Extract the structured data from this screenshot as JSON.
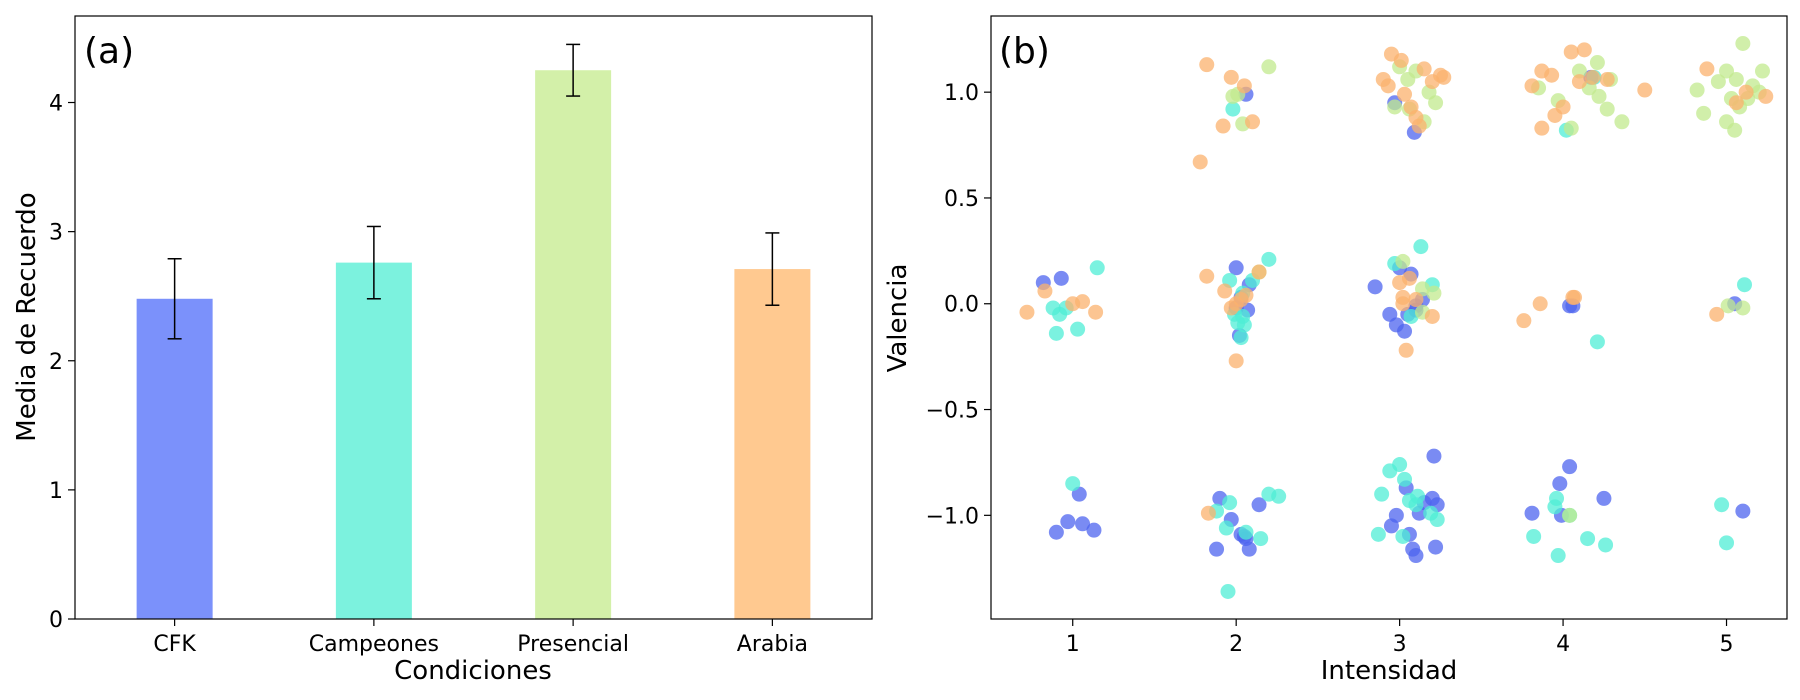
{
  "chart_data": [
    {
      "type": "bar",
      "panel_label": "(a)",
      "title": "",
      "xlabel": "Condiciones",
      "ylabel": "Media de Recuerdo",
      "categories": [
        "CFK",
        "Campeones",
        "Presencial",
        "Arabia"
      ],
      "values": [
        2.48,
        2.76,
        4.25,
        2.71
      ],
      "errors": [
        0.31,
        0.28,
        0.2,
        0.28
      ],
      "colors": [
        "#7b91fb",
        "#7cf2de",
        "#d3f0a9",
        "#ffc990"
      ],
      "ylim": [
        0,
        4.67
      ],
      "yticks": [
        "0",
        "1",
        "2",
        "3",
        "4"
      ],
      "grid": false,
      "legend": "none"
    },
    {
      "type": "scatter",
      "panel_label": "(b)",
      "title": "",
      "xlabel": "Intensidad",
      "ylabel": "Valencia",
      "xlim": [
        0.5,
        5.37
      ],
      "ylim": [
        -1.49,
        1.36
      ],
      "xticks": [
        "1",
        "2",
        "3",
        "4",
        "5"
      ],
      "yticks": [
        "−1.0",
        "−0.5",
        "0.0",
        "0.5",
        "1.0"
      ],
      "grid": false,
      "legend": "none",
      "series": [
        {
          "color": "#4e64ef",
          "points": [
            [
              0.82,
              0.1
            ],
            [
              0.93,
              0.12
            ],
            [
              0.9,
              -1.08
            ],
            [
              0.97,
              -1.03
            ],
            [
              1.04,
              -0.9
            ],
            [
              1.06,
              -1.04
            ],
            [
              1.13,
              -1.07
            ],
            [
              1.9,
              -0.92
            ],
            [
              1.97,
              -1.02
            ],
            [
              2.0,
              0.17
            ],
            [
              2.05,
              -1.1
            ],
            [
              2.07,
              -0.03
            ],
            [
              2.02,
              -0.15
            ],
            [
              2.08,
              0.09
            ],
            [
              2.06,
              0.99
            ],
            [
              1.88,
              -1.16
            ],
            [
              2.03,
              -1.09
            ],
            [
              2.06,
              -1.11
            ],
            [
              2.08,
              -1.16
            ],
            [
              2.14,
              -0.95
            ],
            [
              2.03,
              0.03
            ],
            [
              2.0,
              -0.02
            ],
            [
              2.85,
              0.08
            ],
            [
              2.94,
              -0.05
            ],
            [
              2.98,
              -0.1
            ],
            [
              3.03,
              -0.13
            ],
            [
              3.05,
              -0.05
            ],
            [
              3.0,
              0.17
            ],
            [
              3.07,
              0.14
            ],
            [
              3.1,
              -0.01
            ],
            [
              3.14,
              0.02
            ],
            [
              3.1,
              -0.03
            ],
            [
              2.97,
              0.95
            ],
            [
              3.09,
              0.81
            ],
            [
              2.95,
              -1.05
            ],
            [
              2.98,
              -1.0
            ],
            [
              3.04,
              -0.87
            ],
            [
              3.06,
              -1.09
            ],
            [
              3.08,
              -1.16
            ],
            [
              3.1,
              -1.19
            ],
            [
              3.15,
              -0.94
            ],
            [
              3.2,
              -0.92
            ],
            [
              3.23,
              -0.95
            ],
            [
              3.21,
              -0.72
            ],
            [
              3.22,
              -1.15
            ],
            [
              3.12,
              -0.99
            ],
            [
              3.81,
              -0.99
            ],
            [
              3.98,
              -0.85
            ],
            [
              4.04,
              -0.77
            ],
            [
              3.99,
              -1.0
            ],
            [
              4.06,
              -0.01
            ],
            [
              4.04,
              -0.01
            ],
            [
              4.25,
              -0.92
            ],
            [
              4.17,
              1.07
            ],
            [
              5.05,
              0.0
            ],
            [
              5.1,
              -0.98
            ]
          ]
        },
        {
          "color": "#4feed5",
          "points": [
            [
              1.15,
              0.17
            ],
            [
              0.88,
              -0.02
            ],
            [
              0.92,
              -0.05
            ],
            [
              0.9,
              -0.14
            ],
            [
              0.96,
              -0.02
            ],
            [
              1.03,
              -0.12
            ],
            [
              1.0,
              -0.85
            ],
            [
              1.98,
              0.92
            ],
            [
              2.1,
              0.11
            ],
            [
              2.04,
              0.05
            ],
            [
              1.96,
              0.11
            ],
            [
              2.2,
              0.21
            ],
            [
              1.99,
              -0.05
            ],
            [
              2.01,
              -0.09
            ],
            [
              2.04,
              -0.06
            ],
            [
              2.05,
              -0.1
            ],
            [
              2.03,
              -0.16
            ],
            [
              1.88,
              -0.98
            ],
            [
              1.94,
              -1.06
            ],
            [
              1.96,
              -0.94
            ],
            [
              2.06,
              -1.08
            ],
            [
              2.2,
              -0.9
            ],
            [
              2.26,
              -0.91
            ],
            [
              2.15,
              -1.11
            ],
            [
              1.95,
              -1.36
            ],
            [
              2.87,
              -1.09
            ],
            [
              2.89,
              -0.9
            ],
            [
              2.94,
              -0.79
            ],
            [
              3.0,
              -0.76
            ],
            [
              3.03,
              -0.83
            ],
            [
              3.06,
              -0.93
            ],
            [
              3.02,
              -1.1
            ],
            [
              3.13,
              0.27
            ],
            [
              3.2,
              0.09
            ],
            [
              2.97,
              0.19
            ],
            [
              3.07,
              -0.06
            ],
            [
              3.11,
              -0.91
            ],
            [
              3.23,
              -1.02
            ],
            [
              3.19,
              -0.99
            ],
            [
              3.1,
              -0.95
            ],
            [
              4.19,
              1.07
            ],
            [
              4.21,
              -0.18
            ],
            [
              3.82,
              -1.1
            ],
            [
              3.95,
              -0.96
            ],
            [
              3.97,
              -1.19
            ],
            [
              4.04,
              -1.0
            ],
            [
              4.15,
              -1.11
            ],
            [
              4.26,
              -1.14
            ],
            [
              3.96,
              -0.92
            ],
            [
              4.02,
              0.82
            ],
            [
              5.11,
              0.09
            ],
            [
              4.97,
              -0.95
            ],
            [
              5.0,
              -1.13
            ]
          ]
        },
        {
          "color": "#c1ea8d",
          "points": [
            [
              1.98,
              0.98
            ],
            [
              2.01,
              0.99
            ],
            [
              2.04,
              0.85
            ],
            [
              2.2,
              1.12
            ],
            [
              2.14,
              0.15
            ],
            [
              3.0,
              1.12
            ],
            [
              3.05,
              1.06
            ],
            [
              3.1,
              1.1
            ],
            [
              3.18,
              1.0
            ],
            [
              3.22,
              0.95
            ],
            [
              3.15,
              0.86
            ],
            [
              3.06,
              0.92
            ],
            [
              2.97,
              0.93
            ],
            [
              3.02,
              0.2
            ],
            [
              3.14,
              0.07
            ],
            [
              3.21,
              0.05
            ],
            [
              3.14,
              -0.04
            ],
            [
              3.85,
              1.02
            ],
            [
              3.97,
              0.96
            ],
            [
              4.05,
              0.83
            ],
            [
              4.1,
              1.1
            ],
            [
              4.16,
              1.02
            ],
            [
              4.21,
              1.14
            ],
            [
              4.22,
              0.98
            ],
            [
              4.27,
              0.92
            ],
            [
              4.29,
              1.06
            ],
            [
              4.36,
              0.86
            ],
            [
              4.04,
              -1.0
            ],
            [
              4.82,
              1.01
            ],
            [
              4.86,
              0.9
            ],
            [
              4.95,
              1.05
            ],
            [
              5.0,
              1.1
            ],
            [
              5.03,
              0.97
            ],
            [
              5.06,
              1.06
            ],
            [
              5.1,
              1.23
            ],
            [
              5.08,
              0.93
            ],
            [
              5.0,
              0.86
            ],
            [
              5.05,
              0.82
            ],
            [
              5.13,
              0.97
            ],
            [
              5.16,
              1.03
            ],
            [
              5.2,
              1.0
            ],
            [
              5.22,
              1.1
            ],
            [
              5.01,
              -0.01
            ],
            [
              5.1,
              -0.02
            ]
          ]
        },
        {
          "color": "#fbb26e",
          "points": [
            [
              0.72,
              -0.04
            ],
            [
              0.83,
              0.06
            ],
            [
              1.0,
              0.0
            ],
            [
              1.06,
              0.01
            ],
            [
              1.14,
              -0.04
            ],
            [
              1.78,
              0.67
            ],
            [
              1.82,
              1.13
            ],
            [
              1.92,
              0.84
            ],
            [
              1.97,
              1.07
            ],
            [
              2.05,
              1.03
            ],
            [
              2.1,
              0.86
            ],
            [
              2.0,
              0.0
            ],
            [
              2.03,
              0.02
            ],
            [
              2.06,
              0.04
            ],
            [
              1.93,
              0.06
            ],
            [
              1.97,
              -0.02
            ],
            [
              2.0,
              -0.27
            ],
            [
              2.14,
              0.15
            ],
            [
              1.82,
              0.13
            ],
            [
              1.83,
              -0.99
            ],
            [
              2.9,
              1.06
            ],
            [
              2.93,
              1.03
            ],
            [
              2.95,
              1.18
            ],
            [
              3.01,
              1.15
            ],
            [
              3.03,
              0.99
            ],
            [
              3.07,
              0.93
            ],
            [
              3.1,
              0.88
            ],
            [
              3.12,
              0.84
            ],
            [
              3.15,
              1.11
            ],
            [
              3.2,
              1.05
            ],
            [
              3.25,
              1.08
            ],
            [
              3.27,
              1.07
            ],
            [
              3.02,
              0.0
            ],
            [
              3.06,
              0.12
            ],
            [
              3.1,
              0.02
            ],
            [
              3.04,
              -0.22
            ],
            [
              3.2,
              -0.06
            ],
            [
              3.0,
              0.1
            ],
            [
              3.02,
              0.03
            ],
            [
              3.81,
              1.03
            ],
            [
              3.87,
              1.1
            ],
            [
              3.93,
              1.08
            ],
            [
              3.95,
              0.89
            ],
            [
              4.0,
              0.93
            ],
            [
              4.05,
              1.19
            ],
            [
              4.1,
              1.05
            ],
            [
              4.13,
              1.2
            ],
            [
              4.18,
              1.07
            ],
            [
              4.27,
              1.06
            ],
            [
              4.5,
              1.01
            ],
            [
              3.87,
              0.83
            ],
            [
              3.76,
              -0.08
            ],
            [
              3.86,
              0.0
            ],
            [
              4.07,
              0.03
            ],
            [
              4.06,
              0.03
            ],
            [
              4.88,
              1.11
            ],
            [
              5.06,
              0.95
            ],
            [
              5.12,
              1.0
            ],
            [
              5.24,
              0.98
            ],
            [
              4.94,
              -0.05
            ]
          ]
        }
      ]
    }
  ]
}
